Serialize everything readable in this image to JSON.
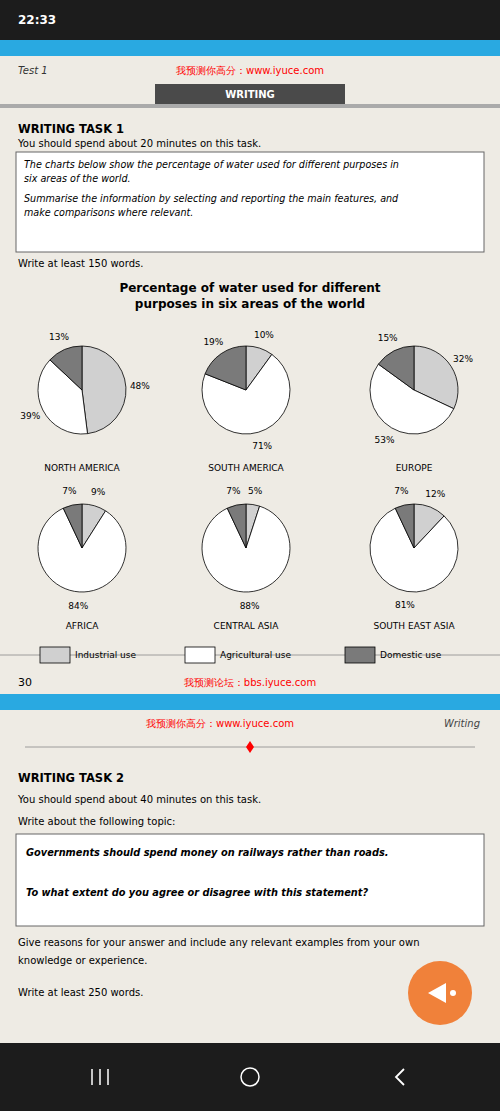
{
  "chart_data": {
    "type": "pie",
    "title": "Percentage of water used for different",
    "subtitle": "purposes in six areas of the world",
    "categories": [
      "Industrial use",
      "Agricultural use",
      "Domestic use"
    ],
    "colors": [
      "#d0d0d0",
      "#ffffff",
      "#7a7a7a"
    ],
    "series": [
      {
        "name": "NORTH AMERICA",
        "values": [
          48,
          39,
          13
        ],
        "value_labels": [
          "48%",
          "39%",
          "13%"
        ]
      },
      {
        "name": "SOUTH AMERICA",
        "values": [
          10,
          71,
          19
        ],
        "value_labels": [
          "10%",
          "71%",
          "19%"
        ]
      },
      {
        "name": "EUROPE",
        "values": [
          32,
          53,
          15
        ],
        "value_labels": [
          "32%",
          "53%",
          "15%"
        ]
      },
      {
        "name": "AFRICA",
        "values": [
          9,
          84,
          7
        ],
        "value_labels": [
          "9%",
          "84%",
          "7%"
        ]
      },
      {
        "name": "CENTRAL ASIA",
        "values": [
          5,
          88,
          7
        ],
        "value_labels": [
          "5%",
          "88%",
          "7%"
        ]
      },
      {
        "name": "SOUTH EAST ASIA",
        "values": [
          12,
          81,
          7
        ],
        "value_labels": [
          "12%",
          "81%",
          "7%"
        ]
      }
    ],
    "data_labels": true,
    "legend": "bottom",
    "annotations": [
      "22:33",
      "Test 1",
      "我预测你高分：www.iyuce.com",
      "WRITING",
      "WRITING TASK 1",
      "You should spend about 20 minutes on this task.",
      "The charts below show the percentage of water used for different purposes in",
      "six areas of the world.",
      "Summarise the information by selecting and reporting the main features, and",
      "make comparisons where relevant.",
      "Write at least 150 words.",
      "30",
      "我预测论坛：bbs.iyuce.com",
      "我预测你高分：www.iyuce.com",
      "Writing",
      "WRITING TASK 2",
      "You should spend about 40 minutes on this task.",
      "Write about the following topic:",
      "Governments should spend money on railways rather than roads.",
      "To what extent do you agree or disagree with this statement?",
      "Give reasons for your answer and include any relevant examples from your own",
      "knowledge or experience.",
      "Write at least 250 words."
    ]
  }
}
